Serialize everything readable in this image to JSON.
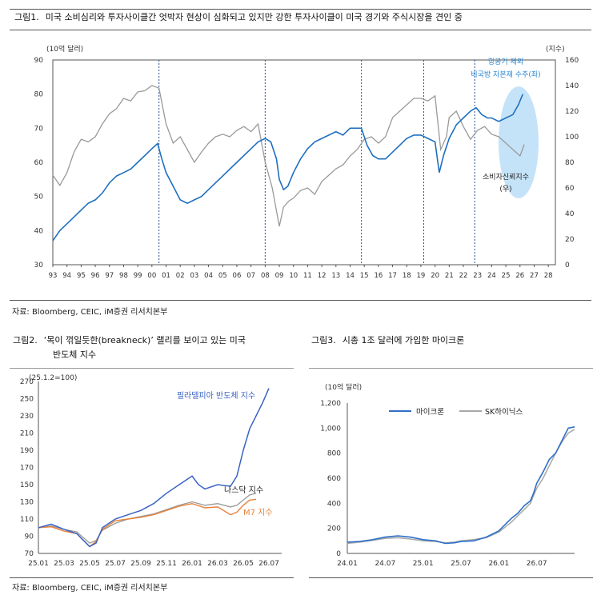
{
  "fig1": {
    "number": "그림1.",
    "title": "미국 소비심리와 투자사이클간 엇박자 현상이 심화되고 있지만 강한 투자사이클이 미국 경기와 주식시장을 견인 중",
    "source": "자료: Bloomberg, CEIC, iM증권 리서치본부",
    "colors": {
      "capex": "#1f6fc0",
      "sentiment": "#9a9a9a",
      "ellipse": "#bfe0f7",
      "annot": "#2a86d0"
    }
  },
  "fig2": {
    "number": "그림2.",
    "title_line1": "‘목이 꺾일듯한(breakneck)’ 랠리를 보이고 있는 미국",
    "title_line2": "반도체 지수",
    "source": "자료: Bloomberg, CEIC, iM증권 리서치본부",
    "colors": {
      "sox": "#3a63c4",
      "nasdaq": "#9a9a9a",
      "m7": "#e8823a"
    }
  },
  "fig3": {
    "number": "그림3.",
    "title": "시총 1조 달러에 가입한 마이크론",
    "colors": {
      "micron": "#2f6fc7",
      "hynix": "#a8a8a8"
    }
  },
  "chart_data": [
    {
      "type": "line",
      "left_unit": "(10억 달러)",
      "right_unit": "(지수)",
      "yleft": [
        30,
        90
      ],
      "yright": [
        0,
        160
      ],
      "y_ticks_left": [
        "30",
        "40",
        "50",
        "60",
        "70",
        "80",
        "90"
      ],
      "y_ticks_right": [
        "0",
        "20",
        "40",
        "60",
        "80",
        "100",
        "120",
        "140",
        "160"
      ],
      "x_ticks": [
        "93",
        "94",
        "95",
        "96",
        "97",
        "98",
        "99",
        "00",
        "01",
        "02",
        "03",
        "04",
        "05",
        "06",
        "07",
        "08",
        "09",
        "10",
        "11",
        "12",
        "13",
        "14",
        "15",
        "16",
        "17",
        "18",
        "19",
        "20",
        "21",
        "22",
        "23",
        "24",
        "25",
        "26",
        "27",
        "28"
      ],
      "xlim": [
        1993,
        2028.5
      ],
      "recession_markers": [
        2000.5,
        2008.0,
        2014.8,
        2019.2,
        2022.8
      ],
      "annotations": [
        {
          "text": "항공기 제외",
          "ref": "capex"
        },
        {
          "text": "비국방 자본재 수주(좌)",
          "ref": "capex"
        },
        {
          "text": "소비자신뢰지수",
          "ref": "sentiment"
        },
        {
          "text": "(우)",
          "ref": "sentiment"
        }
      ],
      "series": [
        {
          "key": "capex",
          "axis": "left",
          "x": [
            1993.0,
            1993.5,
            1994.0,
            1994.5,
            1995.0,
            1995.5,
            1996.0,
            1996.5,
            1997.0,
            1997.5,
            1998.0,
            1998.5,
            1999.0,
            1999.5,
            2000.0,
            2000.4,
            2000.7,
            2001.0,
            2001.5,
            2002.0,
            2002.5,
            2003.0,
            2003.5,
            2004.0,
            2004.5,
            2005.0,
            2005.5,
            2006.0,
            2006.5,
            2007.0,
            2007.5,
            2008.0,
            2008.4,
            2008.8,
            2009.0,
            2009.3,
            2009.6,
            2010.0,
            2010.5,
            2011.0,
            2011.5,
            2012.0,
            2012.5,
            2013.0,
            2013.5,
            2014.0,
            2014.5,
            2014.8,
            2015.2,
            2015.6,
            2016.0,
            2016.5,
            2017.0,
            2017.5,
            2018.0,
            2018.5,
            2019.0,
            2019.5,
            2020.0,
            2020.3,
            2020.6,
            2021.0,
            2021.5,
            2022.0,
            2022.5,
            2022.9,
            2023.3,
            2023.7,
            2024.0,
            2024.5,
            2025.0,
            2025.5,
            2025.9,
            2026.2
          ],
          "y": [
            37,
            40,
            42,
            44,
            46,
            48,
            49,
            51,
            54,
            56,
            57,
            58,
            60,
            62,
            64,
            65.5,
            61,
            57,
            53,
            49,
            48,
            49,
            50,
            52,
            54,
            56,
            58,
            60,
            62,
            64,
            66,
            67,
            66,
            61,
            55,
            52,
            53,
            57,
            61,
            64,
            66,
            67,
            68,
            69,
            68,
            70,
            70,
            70,
            65,
            62,
            61,
            61,
            63,
            65,
            67,
            68,
            68,
            67,
            66,
            57,
            62,
            67,
            71,
            73,
            75,
            76,
            74,
            73,
            73,
            72,
            73,
            74,
            77,
            80
          ]
        },
        {
          "key": "sentiment",
          "axis": "right",
          "x": [
            1993.0,
            1993.5,
            1994.0,
            1994.5,
            1995.0,
            1995.5,
            1996.0,
            1996.5,
            1997.0,
            1997.5,
            1998.0,
            1998.5,
            1999.0,
            1999.5,
            2000.0,
            2000.5,
            2001.0,
            2001.5,
            2002.0,
            2002.5,
            2003.0,
            2003.5,
            2004.0,
            2004.5,
            2005.0,
            2005.5,
            2006.0,
            2006.5,
            2007.0,
            2007.5,
            2008.0,
            2008.5,
            2009.0,
            2009.3,
            2009.7,
            2010.0,
            2010.5,
            2011.0,
            2011.5,
            2012.0,
            2012.5,
            2013.0,
            2013.5,
            2014.0,
            2014.5,
            2015.0,
            2015.5,
            2016.0,
            2016.5,
            2017.0,
            2017.5,
            2018.0,
            2018.5,
            2019.0,
            2019.5,
            2020.0,
            2020.4,
            2020.8,
            2021.0,
            2021.5,
            2022.0,
            2022.5,
            2023.0,
            2023.5,
            2024.0,
            2024.5,
            2025.0,
            2025.5,
            2026.0,
            2026.3
          ],
          "y": [
            70,
            62,
            72,
            88,
            98,
            96,
            100,
            110,
            118,
            122,
            130,
            128,
            135,
            136,
            140,
            138,
            110,
            95,
            100,
            90,
            80,
            88,
            95,
            100,
            102,
            100,
            105,
            108,
            104,
            110,
            80,
            60,
            30,
            45,
            50,
            52,
            58,
            60,
            55,
            65,
            70,
            75,
            78,
            85,
            90,
            98,
            100,
            95,
            100,
            115,
            120,
            125,
            130,
            130,
            128,
            132,
            90,
            100,
            115,
            120,
            108,
            98,
            105,
            108,
            102,
            100,
            95,
            90,
            85,
            94
          ]
        }
      ]
    },
    {
      "type": "line",
      "unit_label": "(25.1.2=100)",
      "ylim": [
        70,
        270
      ],
      "y_ticks": [
        "70",
        "90",
        "110",
        "130",
        "150",
        "170",
        "190",
        "210",
        "230",
        "250",
        "270"
      ],
      "x_ticks": [
        "25.01",
        "25.03",
        "25.05",
        "25.07",
        "25.09",
        "25.11",
        "26.01",
        "26.03",
        "26.05",
        "26.07"
      ],
      "xlim": [
        0,
        19
      ],
      "series": [
        {
          "name": "필라델피아 반도체 지수",
          "x": [
            0,
            1,
            2,
            3,
            4,
            4.5,
            5,
            6,
            7,
            8,
            9,
            10,
            11,
            12,
            12.5,
            13,
            14,
            15,
            15.5,
            16,
            16.5,
            17,
            17.5,
            18
          ],
          "y": [
            100,
            104,
            98,
            93,
            78,
            82,
            100,
            110,
            115,
            120,
            128,
            140,
            150,
            160,
            150,
            145,
            150,
            148,
            160,
            190,
            215,
            230,
            245,
            262
          ]
        },
        {
          "name": "나스닥 지수",
          "x": [
            0,
            1,
            2,
            3,
            4,
            4.5,
            5,
            6,
            7,
            8,
            9,
            10,
            11,
            12,
            13,
            14,
            15,
            15.5,
            16,
            16.5,
            17
          ],
          "y": [
            100,
            102,
            98,
            95,
            82,
            85,
            97,
            105,
            110,
            113,
            116,
            121,
            126,
            130,
            126,
            128,
            124,
            126,
            132,
            138,
            140
          ]
        },
        {
          "name": "M7 지수",
          "x": [
            0,
            1,
            2,
            3,
            4,
            4.5,
            5,
            6,
            7,
            8,
            9,
            10,
            11,
            12,
            13,
            14,
            15,
            15.5,
            16,
            16.5,
            17
          ],
          "y": [
            100,
            101,
            96,
            93,
            78,
            84,
            98,
            108,
            110,
            112,
            115,
            120,
            125,
            128,
            123,
            124,
            115,
            118,
            126,
            132,
            133
          ]
        }
      ]
    },
    {
      "type": "line",
      "unit_label": "(10억 달러)",
      "ylim": [
        0,
        1200
      ],
      "y_ticks": [
        "0",
        "200",
        "400",
        "600",
        "800",
        "1,000",
        "1,200"
      ],
      "x_ticks": [
        "24.01",
        "24.07",
        "25.01",
        "25.07",
        "26.01",
        "26.07"
      ],
      "xlim": [
        0,
        36
      ],
      "series": [
        {
          "name": "마이크론",
          "x": [
            0,
            2,
            4,
            6,
            8,
            10,
            12,
            14,
            15.5,
            17,
            18,
            20,
            22,
            24,
            26,
            27,
            28,
            29,
            29.5,
            30,
            31,
            32,
            33,
            34,
            35,
            36
          ],
          "y": [
            90,
            95,
            110,
            130,
            140,
            130,
            110,
            100,
            80,
            85,
            95,
            100,
            130,
            180,
            280,
            320,
            380,
            420,
            480,
            560,
            650,
            750,
            800,
            900,
            1000,
            1010
          ]
        },
        {
          "name": "SK하이닉스",
          "x": [
            0,
            2,
            4,
            6,
            8,
            10,
            12,
            14,
            15.5,
            17,
            18,
            20,
            22,
            24,
            26,
            27,
            28,
            29,
            29.5,
            30,
            31,
            32,
            33,
            34,
            35,
            36
          ],
          "y": [
            80,
            90,
            105,
            120,
            125,
            115,
            100,
            95,
            85,
            90,
            100,
            110,
            125,
            170,
            250,
            300,
            350,
            400,
            460,
            520,
            600,
            700,
            800,
            890,
            960,
            990
          ]
        }
      ]
    }
  ]
}
